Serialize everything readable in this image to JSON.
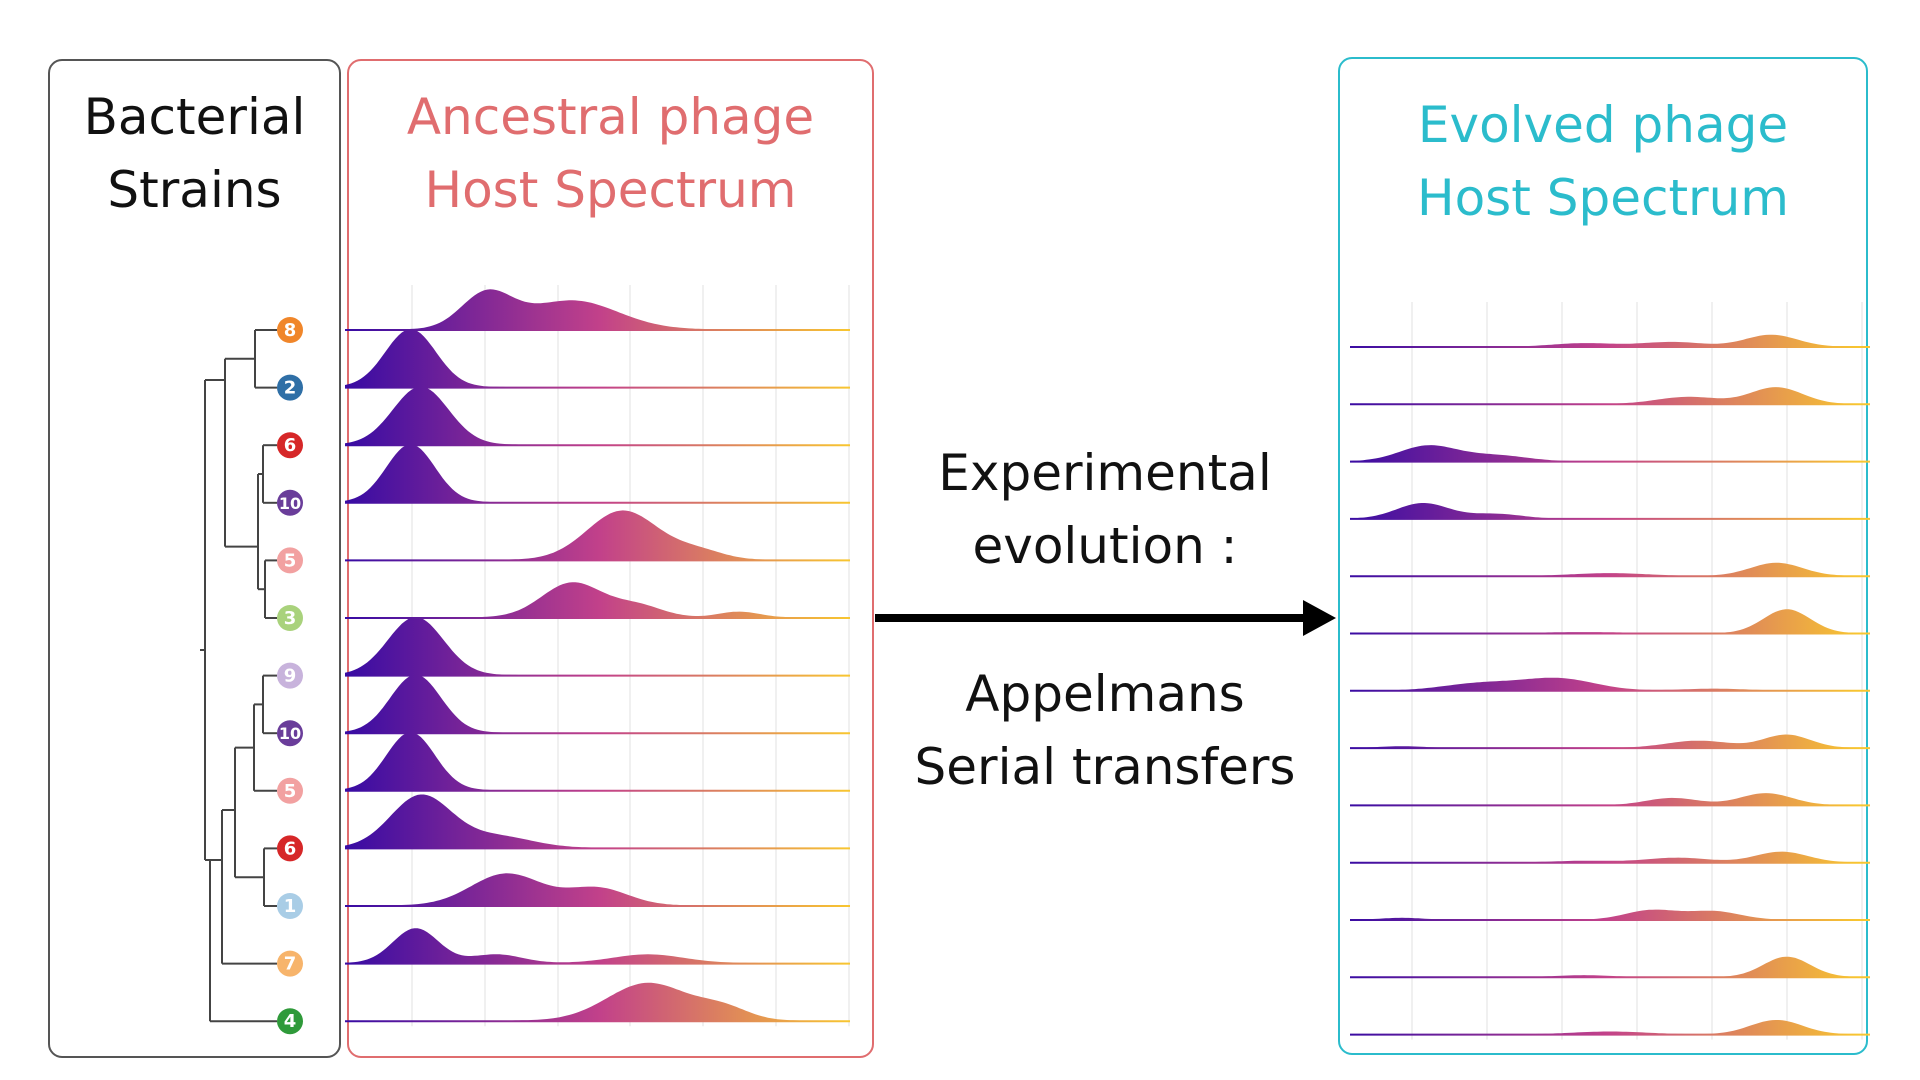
{
  "panels": {
    "strains": {
      "title_lines": [
        "Bacterial",
        "Strains"
      ]
    },
    "ancestral": {
      "title_lines": [
        "Ancestral phage",
        "Host Spectrum"
      ]
    },
    "evolved": {
      "title_lines": [
        "Evolved phage",
        "Host Spectrum"
      ]
    }
  },
  "arrow": {
    "top_lines": [
      "Experimental",
      "evolution :"
    ],
    "bottom_lines": [
      "Appelmans",
      "Serial transfers"
    ]
  },
  "strains": [
    {
      "label": "8",
      "color": "#f0862a"
    },
    {
      "label": "2",
      "color": "#2f6fa6"
    },
    {
      "label": "6",
      "color": "#d62728"
    },
    {
      "label": "10",
      "color": "#6a3d9a"
    },
    {
      "label": "5",
      "color": "#f2a1a1"
    },
    {
      "label": "3",
      "color": "#a9d27c"
    },
    {
      "label": "9",
      "color": "#c8b3dc"
    },
    {
      "label": "10",
      "color": "#6a3d9a"
    },
    {
      "label": "5",
      "color": "#f2a1a1"
    },
    {
      "label": "6",
      "color": "#d62728"
    },
    {
      "label": "1",
      "color": "#a9cde6"
    },
    {
      "label": "7",
      "color": "#f7b46b"
    },
    {
      "label": "4",
      "color": "#2f9a3a"
    }
  ],
  "colors": {
    "low": "#3a0ca3",
    "mid": "#c2418a",
    "high": "#f8c630"
  },
  "chart_data": [
    {
      "type": "area",
      "name": "ancestral",
      "xlim": [
        0,
        1
      ],
      "ridges": [
        [
          [
            0.28,
            0.05,
            0.6
          ],
          [
            0.45,
            0.09,
            0.5
          ]
        ],
        [
          [
            0.13,
            0.05,
            1.0
          ]
        ],
        [
          [
            0.15,
            0.055,
            1.0
          ]
        ],
        [
          [
            0.13,
            0.048,
            1.0
          ]
        ],
        [
          [
            0.55,
            0.07,
            0.85
          ],
          [
            0.7,
            0.05,
            0.15
          ]
        ],
        [
          [
            0.45,
            0.06,
            0.6
          ],
          [
            0.58,
            0.05,
            0.2
          ],
          [
            0.78,
            0.04,
            0.1
          ]
        ],
        [
          [
            0.14,
            0.055,
            1.0
          ]
        ],
        [
          [
            0.14,
            0.05,
            1.0
          ]
        ],
        [
          [
            0.13,
            0.048,
            1.0
          ]
        ],
        [
          [
            0.15,
            0.06,
            0.9
          ],
          [
            0.3,
            0.07,
            0.2
          ]
        ],
        [
          [
            0.32,
            0.07,
            0.55
          ],
          [
            0.5,
            0.06,
            0.3
          ]
        ],
        [
          [
            0.14,
            0.045,
            0.6
          ],
          [
            0.3,
            0.05,
            0.15
          ],
          [
            0.6,
            0.07,
            0.15
          ]
        ],
        [
          [
            0.6,
            0.08,
            0.65
          ],
          [
            0.75,
            0.05,
            0.2
          ]
        ]
      ]
    },
    {
      "type": "area",
      "name": "evolved",
      "xlim": [
        0,
        1
      ],
      "ridges": [
        [
          [
            0.45,
            0.06,
            0.15
          ],
          [
            0.62,
            0.06,
            0.2
          ],
          [
            0.81,
            0.05,
            0.5
          ]
        ],
        [
          [
            0.65,
            0.06,
            0.3
          ],
          [
            0.82,
            0.05,
            0.7
          ]
        ],
        [
          [
            0.15,
            0.055,
            0.65
          ],
          [
            0.28,
            0.06,
            0.25
          ]
        ],
        [
          [
            0.14,
            0.05,
            0.65
          ],
          [
            0.28,
            0.05,
            0.2
          ]
        ],
        [
          [
            0.5,
            0.07,
            0.12
          ],
          [
            0.82,
            0.05,
            0.55
          ]
        ],
        [
          [
            0.45,
            0.08,
            0.05
          ],
          [
            0.84,
            0.045,
            1.0
          ]
        ],
        [
          [
            0.25,
            0.07,
            0.3
          ],
          [
            0.4,
            0.07,
            0.5
          ],
          [
            0.7,
            0.06,
            0.08
          ]
        ],
        [
          [
            0.1,
            0.04,
            0.07
          ],
          [
            0.67,
            0.06,
            0.3
          ],
          [
            0.84,
            0.045,
            0.55
          ]
        ],
        [
          [
            0.62,
            0.05,
            0.3
          ],
          [
            0.8,
            0.05,
            0.5
          ]
        ],
        [
          [
            0.45,
            0.06,
            0.07
          ],
          [
            0.63,
            0.06,
            0.2
          ],
          [
            0.83,
            0.05,
            0.45
          ]
        ],
        [
          [
            0.1,
            0.04,
            0.08
          ],
          [
            0.58,
            0.05,
            0.4
          ],
          [
            0.7,
            0.05,
            0.35
          ]
        ],
        [
          [
            0.45,
            0.05,
            0.08
          ],
          [
            0.84,
            0.045,
            0.85
          ]
        ],
        [
          [
            0.5,
            0.07,
            0.12
          ],
          [
            0.82,
            0.05,
            0.6
          ]
        ]
      ]
    }
  ]
}
